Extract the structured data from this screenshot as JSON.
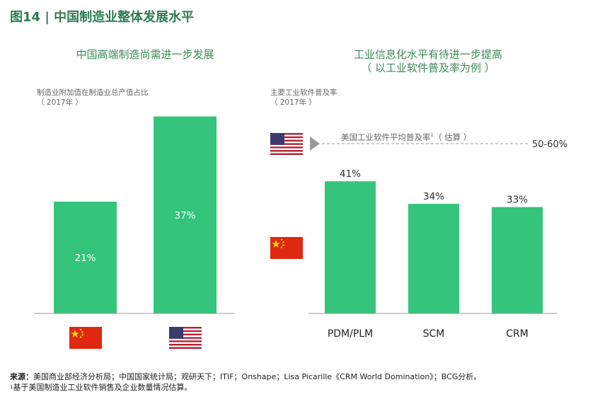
{
  "figure": {
    "title": "图14 | 中国制造业整体发展水平"
  },
  "colors": {
    "bar": "#34c47c",
    "title": "#2e7d4f",
    "axis": "#999999"
  },
  "chart_data": [
    {
      "type": "bar",
      "title": "中国高端制造尚需进一步发展",
      "axis_note": "制造业附加值在制造业总产值占比",
      "axis_note_year": "（ 2017年 ）",
      "categories": [
        "china-flag",
        "usa-flag"
      ],
      "values": [
        21,
        37
      ],
      "value_labels": [
        "21%",
        "37%"
      ],
      "ylim": [
        0,
        40
      ]
    },
    {
      "type": "bar",
      "title": "工业信息化水平有待进一步提高",
      "subtitle": "（ 以工业软件普及率为例 ）",
      "axis_note": "主要工业软件普及率",
      "axis_note_year": "（ 2017年 ）",
      "categories": [
        "PDM/PLM",
        "SCM",
        "CRM"
      ],
      "values": [
        41,
        34,
        33
      ],
      "value_labels": [
        "41%",
        "34%",
        "33%"
      ],
      "ylim": [
        0,
        45
      ],
      "annotation": {
        "text": "美国工业软件平均普及率",
        "footnote_mark": "1",
        "suffix": "（ 估算 ）",
        "value": "50-60%"
      }
    }
  ],
  "footer": {
    "source_label": "来源：",
    "source_text": "美国商业部经济分析局；中国国家统计局；观研天下；ITIF；Onshape；Lisa Picarille《CRM World Domination》；BCG分析。",
    "note_mark": "1",
    "note_text": "基于美国制造业工业软件销售及企业数量情况估算。"
  }
}
